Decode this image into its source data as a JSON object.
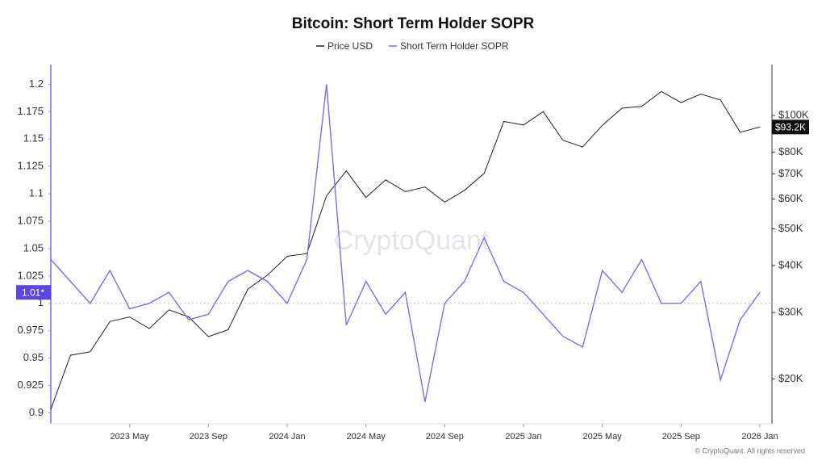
{
  "chart_data": {
    "type": "line",
    "title": "Bitcoin: Short Term Holder SOPR",
    "watermark": "CryptoQuant",
    "footer": "© CryptoQuant. All rights reserved",
    "x": [
      "2023-01",
      "2023-02",
      "2023-03",
      "2023-04",
      "2023-05",
      "2023-06",
      "2023-07",
      "2023-08",
      "2023-09",
      "2023-10",
      "2023-11",
      "2023-12",
      "2024-01",
      "2024-02",
      "2024-03",
      "2024-04",
      "2024-05",
      "2024-06",
      "2024-07",
      "2024-08",
      "2024-09",
      "2024-10",
      "2024-11",
      "2024-12",
      "2025-01",
      "2025-02",
      "2025-03",
      "2025-04",
      "2025-05",
      "2025-06",
      "2025-07",
      "2025-08",
      "2025-09",
      "2025-10",
      "2025-11",
      "2025-12",
      "2026-01"
    ],
    "xlim": [
      "2023-01",
      "2026-01"
    ],
    "xticks": [
      {
        "value": "2023-05",
        "label": "2023 May"
      },
      {
        "value": "2023-09",
        "label": "2023 Sep"
      },
      {
        "value": "2024-01",
        "label": "2024 Jan"
      },
      {
        "value": "2024-05",
        "label": "2024 May"
      },
      {
        "value": "2024-09",
        "label": "2024 Sep"
      },
      {
        "value": "2025-01",
        "label": "2025 Jan"
      },
      {
        "value": "2025-05",
        "label": "2025 May"
      },
      {
        "value": "2025-09",
        "label": "2025 Sep"
      },
      {
        "value": "2026-01",
        "label": "2026 Jan"
      }
    ],
    "ylim": [
      0.89,
      1.218
    ],
    "yticks": [
      0.9,
      0.925,
      0.95,
      0.975,
      1,
      1.025,
      1.05,
      1.075,
      1.1,
      1.125,
      1.15,
      1.175,
      1.2
    ],
    "y2lim": [
      15200,
      136500
    ],
    "y2log": true,
    "y2ticks": [
      {
        "value": 20000,
        "label": "$20K"
      },
      {
        "value": 30000,
        "label": "$30K"
      },
      {
        "value": 40000,
        "label": "$40K"
      },
      {
        "value": 50000,
        "label": "$50K"
      },
      {
        "value": 60000,
        "label": "$60K"
      },
      {
        "value": 70000,
        "label": "$70K"
      },
      {
        "value": 80000,
        "label": "$80K"
      },
      {
        "value": 100000,
        "label": "$100K"
      }
    ],
    "reference_line": 1,
    "series": [
      {
        "name": "Price USD",
        "color": "#222222",
        "axis": "y2",
        "values": [
          16600,
          23100,
          23600,
          28400,
          29200,
          27200,
          30500,
          29200,
          25900,
          27000,
          34600,
          37700,
          42300,
          43000,
          61200,
          71300,
          60600,
          67500,
          62800,
          64600,
          58900,
          63300,
          70200,
          96400,
          94400,
          102400,
          86000,
          82500,
          94200,
          104600,
          105700,
          115800,
          108200,
          114000,
          110000,
          90300,
          93200
        ],
        "last_value_label": "$93.2K"
      },
      {
        "name": "Short Term Holder SOPR",
        "color": "#7b6cf0",
        "values": [
          1.04,
          1.02,
          1.0,
          1.03,
          0.995,
          1.0,
          1.01,
          0.985,
          0.99,
          1.02,
          1.03,
          1.02,
          1.0,
          1.04,
          1.2,
          0.98,
          1.02,
          0.99,
          1.01,
          0.91,
          1.0,
          1.02,
          1.06,
          1.02,
          1.01,
          0.99,
          0.97,
          0.96,
          1.03,
          1.01,
          1.04,
          1.0,
          1.0,
          1.02,
          0.93,
          0.985,
          1.01
        ],
        "last_value_label": "1.01*"
      }
    ]
  }
}
